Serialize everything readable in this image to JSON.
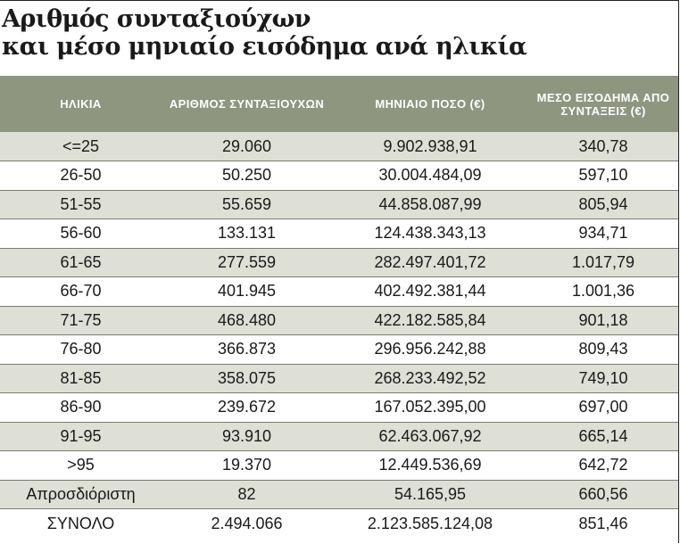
{
  "title": {
    "line1": "Αριθμός συνταξιούχων",
    "line2": "και μέσο μηνιαίο εισόδημα ανά ηλικία"
  },
  "table": {
    "headers": [
      "ΗΛΙΚΙΑ",
      "ΑΡΙΘΜΟΣ ΣΥΝΤΑΞΙΟΥΧΩΝ",
      "ΜΗΝΙΑΙΟ ΠΟΣΟ (€)",
      "ΜΕΣΟ ΕΙΣΟΔΗΜΑ ΑΠΟ ΣΥΝΤΑΞΕΙΣ (€)"
    ],
    "rows": [
      [
        "<=25",
        "29.060",
        "9.902.938,91",
        "340,78"
      ],
      [
        "26-50",
        "50.250",
        "30.004.484,09",
        "597,10"
      ],
      [
        "51-55",
        "55.659",
        "44.858.087,99",
        "805,94"
      ],
      [
        "56-60",
        "133.131",
        "124.438.343,13",
        "934,71"
      ],
      [
        "61-65",
        "277.559",
        "282.497.401,72",
        "1.017,79"
      ],
      [
        "66-70",
        "401.945",
        "402.492.381,44",
        "1.001,36"
      ],
      [
        "71-75",
        "468.480",
        "422.182.585,84",
        "901,18"
      ],
      [
        "76-80",
        "366.873",
        "296.956.242,88",
        "809,43"
      ],
      [
        "81-85",
        "358.075",
        "268.233.492,52",
        "749,10"
      ],
      [
        "86-90",
        "239.672",
        "167.052.395,00",
        "697,00"
      ],
      [
        "91-95",
        "93.910",
        "62.463.067,92",
        "665,14"
      ],
      [
        ">95",
        "19.370",
        "12.449.536,69",
        "642,72"
      ],
      [
        "Απροσδιόριστη",
        "82",
        "54.165,95",
        "660,56"
      ],
      [
        "ΣΥΝΟΛΟ",
        "2.494.066",
        "2.123.585.124,08",
        "851,46"
      ]
    ]
  }
}
